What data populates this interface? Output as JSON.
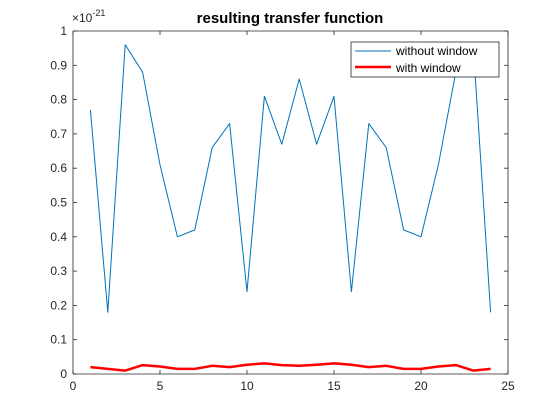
{
  "chart_data": {
    "type": "line",
    "title": "resulting transfer function",
    "xlabel": "",
    "ylabel": "",
    "xlim": [
      0,
      25
    ],
    "ylim": [
      0,
      1
    ],
    "x_ticks": [
      0,
      5,
      10,
      15,
      20,
      25
    ],
    "y_ticks": [
      0,
      0.1,
      0.2,
      0.3,
      0.4,
      0.5,
      0.6,
      0.7,
      0.8,
      0.9,
      1
    ],
    "y_tick_labels": [
      "0",
      "0.1",
      "0.2",
      "0.3",
      "0.4",
      "0.5",
      "0.6",
      "0.7",
      "0.8",
      "0.9",
      "1"
    ],
    "x_tick_labels": [
      "0",
      "5",
      "10",
      "15",
      "20",
      "25"
    ],
    "y_multiplier_base": "×10",
    "y_multiplier_exponent": "-21",
    "grid": false,
    "legend_position": "top-right",
    "series": [
      {
        "name": "without window",
        "color": "#0072bd",
        "x": [
          1,
          2,
          3,
          4,
          5,
          6,
          7,
          8,
          9,
          10,
          11,
          12,
          13,
          14,
          15,
          16,
          17,
          18,
          19,
          20,
          21,
          22,
          23,
          24
        ],
        "values": [
          0.77,
          0.18,
          0.96,
          0.88,
          0.61,
          0.4,
          0.42,
          0.66,
          0.73,
          0.24,
          0.81,
          0.67,
          0.86,
          0.67,
          0.81,
          0.24,
          0.73,
          0.66,
          0.42,
          0.4,
          0.61,
          0.88,
          0.96,
          0.18
        ]
      },
      {
        "name": "with window",
        "color": "#ff0000",
        "x": [
          1,
          2,
          3,
          4,
          5,
          6,
          7,
          8,
          9,
          10,
          11,
          12,
          13,
          14,
          15,
          16,
          17,
          18,
          19,
          20,
          21,
          22,
          23,
          24
        ],
        "values": [
          0.02,
          0.015,
          0.01,
          0.026,
          0.022,
          0.015,
          0.015,
          0.024,
          0.02,
          0.027,
          0.031,
          0.026,
          0.024,
          0.027,
          0.031,
          0.027,
          0.02,
          0.024,
          0.015,
          0.015,
          0.022,
          0.026,
          0.01,
          0.015
        ]
      }
    ]
  }
}
